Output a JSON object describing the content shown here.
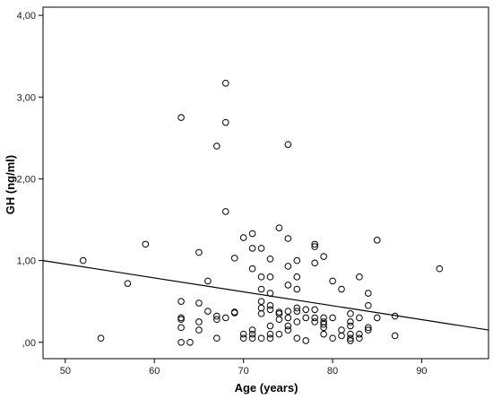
{
  "chart_data": {
    "type": "scatter",
    "xlabel": "Age (years)",
    "ylabel": "GH (ng/ml)",
    "xlim": [
      47.5,
      97.5
    ],
    "ylim": [
      -0.2,
      4.1
    ],
    "x_ticks": [
      {
        "value": 50,
        "label": "50"
      },
      {
        "value": 60,
        "label": "60"
      },
      {
        "value": 70,
        "label": "70"
      },
      {
        "value": 80,
        "label": "80"
      },
      {
        "value": 90,
        "label": "90"
      }
    ],
    "y_ticks": [
      {
        "value": 0,
        "label": ",00"
      },
      {
        "value": 1,
        "label": "1,00"
      },
      {
        "value": 2,
        "label": "2,00"
      },
      {
        "value": 3,
        "label": "3,00"
      },
      {
        "value": 4,
        "label": "4,00"
      }
    ],
    "grid": false,
    "marker": "open-circle",
    "colors": {
      "marker": "#000000",
      "fit_line": "#000000",
      "background": "#ffffff"
    },
    "fit_line": {
      "x": [
        47.5,
        97.5
      ],
      "y": [
        1.0,
        0.15
      ]
    },
    "points": [
      [
        52,
        1.0
      ],
      [
        54,
        0.05
      ],
      [
        57,
        0.72
      ],
      [
        59,
        1.2
      ],
      [
        63,
        2.75
      ],
      [
        63,
        0.5
      ],
      [
        63,
        0.3
      ],
      [
        63,
        0.28
      ],
      [
        63,
        0.18
      ],
      [
        63,
        0.0
      ],
      [
        64,
        0.0
      ],
      [
        65,
        1.1
      ],
      [
        65,
        0.48
      ],
      [
        65,
        0.15
      ],
      [
        65,
        0.25
      ],
      [
        66,
        0.75
      ],
      [
        66,
        0.38
      ],
      [
        67,
        2.4
      ],
      [
        67,
        0.32
      ],
      [
        67,
        0.28
      ],
      [
        67,
        0.05
      ],
      [
        68,
        3.17
      ],
      [
        68,
        2.69
      ],
      [
        68,
        1.6
      ],
      [
        68,
        0.3
      ],
      [
        69,
        1.03
      ],
      [
        69,
        0.37
      ],
      [
        69,
        0.36
      ],
      [
        70,
        1.28
      ],
      [
        70,
        0.1
      ],
      [
        70,
        0.05
      ],
      [
        71,
        1.33
      ],
      [
        71,
        1.15
      ],
      [
        71,
        0.9
      ],
      [
        71,
        0.15
      ],
      [
        71,
        0.1
      ],
      [
        71,
        0.05
      ],
      [
        72,
        1.15
      ],
      [
        72,
        0.8
      ],
      [
        72,
        0.65
      ],
      [
        72,
        0.5
      ],
      [
        72,
        0.42
      ],
      [
        72,
        0.35
      ],
      [
        72,
        0.05
      ],
      [
        73,
        1.02
      ],
      [
        73,
        0.8
      ],
      [
        73,
        0.6
      ],
      [
        73,
        0.45
      ],
      [
        73,
        0.4
      ],
      [
        73,
        0.2
      ],
      [
        73,
        0.1
      ],
      [
        73,
        0.05
      ],
      [
        74,
        1.4
      ],
      [
        74,
        0.37
      ],
      [
        74,
        0.35
      ],
      [
        74,
        0.28
      ],
      [
        74,
        0.1
      ],
      [
        75,
        2.42
      ],
      [
        75,
        1.27
      ],
      [
        75,
        0.93
      ],
      [
        75,
        0.7
      ],
      [
        75,
        0.38
      ],
      [
        75,
        0.3
      ],
      [
        75,
        0.2
      ],
      [
        75,
        0.15
      ],
      [
        76,
        1.0
      ],
      [
        76,
        0.8
      ],
      [
        76,
        0.65
      ],
      [
        76,
        0.42
      ],
      [
        76,
        0.38
      ],
      [
        76,
        0.25
      ],
      [
        76,
        0.05
      ],
      [
        77,
        0.4
      ],
      [
        77,
        0.3
      ],
      [
        77,
        0.02
      ],
      [
        78,
        1.2
      ],
      [
        78,
        1.17
      ],
      [
        78,
        0.97
      ],
      [
        78,
        0.4
      ],
      [
        78,
        0.3
      ],
      [
        78,
        0.25
      ],
      [
        79,
        1.05
      ],
      [
        79,
        0.3
      ],
      [
        79,
        0.25
      ],
      [
        79,
        0.22
      ],
      [
        79,
        0.18
      ],
      [
        79,
        0.1
      ],
      [
        80,
        0.75
      ],
      [
        80,
        0.3
      ],
      [
        80,
        0.05
      ],
      [
        81,
        0.65
      ],
      [
        81,
        0.15
      ],
      [
        81,
        0.08
      ],
      [
        82,
        0.35
      ],
      [
        82,
        0.25
      ],
      [
        82,
        0.2
      ],
      [
        82,
        0.1
      ],
      [
        82,
        0.05
      ],
      [
        82,
        0.02
      ],
      [
        83,
        0.8
      ],
      [
        83,
        0.3
      ],
      [
        83,
        0.1
      ],
      [
        83,
        0.05
      ],
      [
        84,
        0.6
      ],
      [
        84,
        0.45
      ],
      [
        84,
        0.18
      ],
      [
        84,
        0.15
      ],
      [
        85,
        1.25
      ],
      [
        85,
        0.3
      ],
      [
        87,
        0.32
      ],
      [
        87,
        0.08
      ],
      [
        92,
        0.9
      ]
    ]
  }
}
